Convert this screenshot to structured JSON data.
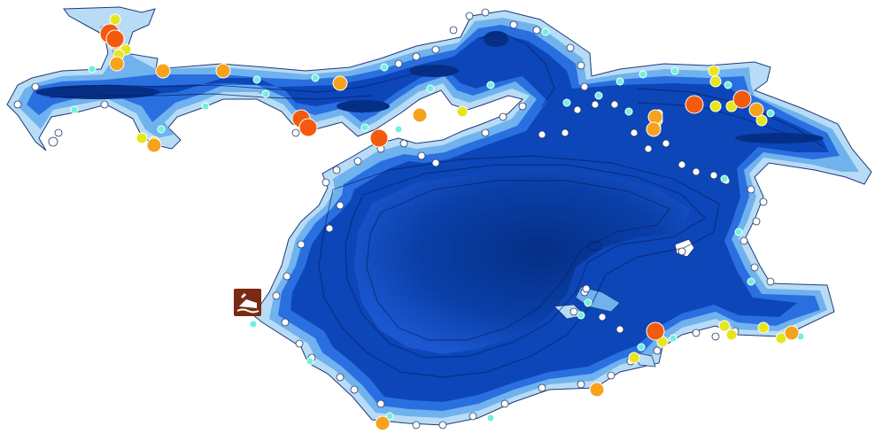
{
  "map": {
    "type": "lake-depth-map",
    "colors": {
      "shallow": "#b8dcf5",
      "shallow_mid": "#6fb2ee",
      "mid": "#2a6fe0",
      "deep": "#0c46b8",
      "deepest": "#052f86",
      "contour": "#0a1f5c",
      "outline": "#1d3a7a"
    },
    "marker_legend": [
      {
        "category": "large-orange-red",
        "color": "#f45a0e",
        "icon": "circle-marker"
      },
      {
        "category": "orange",
        "color": "#f7a21c",
        "icon": "circle-marker"
      },
      {
        "category": "yellow",
        "color": "#e6e61a",
        "icon": "circle-marker"
      },
      {
        "category": "cyan",
        "color": "#6ff0dc",
        "icon": "circle-marker"
      },
      {
        "category": "white",
        "color": "#ffffff",
        "icon": "circle-marker"
      }
    ],
    "boat_ramp": {
      "icon": "boat-ramp-icon",
      "color": "#7a2a12"
    }
  }
}
